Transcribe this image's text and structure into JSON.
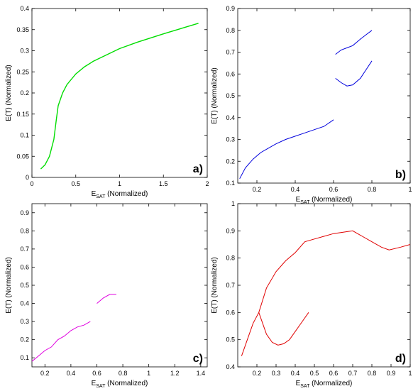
{
  "chart_data": [
    {
      "type": "line",
      "panel_label": "a)",
      "xlabel": {
        "main": "E",
        "sub": "SAT",
        "suffix": " (Normalized)"
      },
      "ylabel": "E(T) (Normalized)",
      "xlim": [
        0,
        2
      ],
      "ylim": [
        0,
        0.4
      ],
      "xticks": [
        0,
        0.5,
        1,
        1.5,
        2
      ],
      "xtick_labels": [
        "0",
        "0.5",
        "1",
        "1.5",
        "2"
      ],
      "yticks": [
        0,
        0.05,
        0.1,
        0.15,
        0.2,
        0.25,
        0.3,
        0.35,
        0.4
      ],
      "ytick_labels": [
        "0",
        "0.05",
        "0.1",
        "0.15",
        "0.2",
        "0.25",
        "0.3",
        "0.35",
        "0.4"
      ],
      "grid": false,
      "color": "#00dd00",
      "series": [
        {
          "x": [
            0.1,
            0.15,
            0.2,
            0.25,
            0.28,
            0.3,
            0.35,
            0.4,
            0.5,
            0.6,
            0.7,
            0.8,
            1.0,
            1.2,
            1.5,
            1.9
          ],
          "y": [
            0.02,
            0.03,
            0.05,
            0.09,
            0.14,
            0.17,
            0.2,
            0.22,
            0.245,
            0.262,
            0.275,
            0.285,
            0.305,
            0.32,
            0.34,
            0.365
          ]
        }
      ]
    },
    {
      "type": "scatter",
      "panel_label": "b)",
      "xlabel": {
        "main": "E",
        "sub": "SAT",
        "suffix": " (Normalized)"
      },
      "ylabel": "E(T) (Normalized)",
      "xlim": [
        0.1,
        1
      ],
      "ylim": [
        0.1,
        0.9
      ],
      "xticks": [
        0.2,
        0.4,
        0.6,
        0.8,
        1
      ],
      "xtick_labels": [
        "0.2",
        "0.4",
        "0.6",
        "0.8",
        "1"
      ],
      "yticks": [
        0.1,
        0.2,
        0.3,
        0.4,
        0.5,
        0.6,
        0.7,
        0.8,
        0.9
      ],
      "ytick_labels": [
        "0.1",
        "0.2",
        "0.3",
        "0.4",
        "0.5",
        "0.6",
        "0.7",
        "0.8",
        "0.9"
      ],
      "grid": false,
      "color": "#0000dd",
      "series": [
        {
          "x": [
            0.11,
            0.14,
            0.18,
            0.22,
            0.26,
            0.3,
            0.35,
            0.4,
            0.45,
            0.5,
            0.55,
            0.6
          ],
          "y": [
            0.12,
            0.17,
            0.21,
            0.24,
            0.26,
            0.28,
            0.3,
            0.315,
            0.33,
            0.345,
            0.36,
            0.39
          ]
        },
        {
          "x": [
            0.61,
            0.64,
            0.67,
            0.7,
            0.74,
            0.77,
            0.8
          ],
          "y": [
            0.69,
            0.71,
            0.72,
            0.73,
            0.76,
            0.78,
            0.8
          ]
        },
        {
          "x": [
            0.61,
            0.64,
            0.67,
            0.7,
            0.74,
            0.77,
            0.8
          ],
          "y": [
            0.58,
            0.56,
            0.545,
            0.55,
            0.58,
            0.62,
            0.66
          ]
        }
      ]
    },
    {
      "type": "scatter",
      "panel_label": "c)",
      "xlabel": {
        "main": "E",
        "sub": "SAT",
        "suffix": " (Normalized)"
      },
      "ylabel": "E(T) (Normalized)",
      "xlim": [
        0.1,
        1.45
      ],
      "ylim": [
        0.05,
        0.95
      ],
      "xticks": [
        0.2,
        0.4,
        0.6,
        0.8,
        1,
        1.2,
        1.4
      ],
      "xtick_labels": [
        "0.2",
        "0.4",
        "0.6",
        "0.8",
        "1",
        "1.2",
        "1.4"
      ],
      "yticks": [
        0.1,
        0.2,
        0.3,
        0.4,
        0.5,
        0.6,
        0.7,
        0.8,
        0.9
      ],
      "ytick_labels": [
        "0.1",
        "0.2",
        "0.3",
        "0.4",
        "0.5",
        "0.6",
        "0.7",
        "0.8",
        "0.9"
      ],
      "grid": false,
      "color": "#e000e0",
      "series": [
        {
          "x": [
            0.1,
            0.15,
            0.2,
            0.25,
            0.3,
            0.35,
            0.4,
            0.45,
            0.5,
            0.55
          ],
          "y": [
            0.08,
            0.11,
            0.14,
            0.16,
            0.2,
            0.22,
            0.25,
            0.27,
            0.28,
            0.3
          ]
        },
        {
          "x": [
            0.6,
            0.65,
            0.7,
            0.75
          ],
          "y": [
            0.4,
            0.43,
            0.45,
            0.45
          ]
        }
      ]
    },
    {
      "type": "scatter",
      "panel_label": "d)",
      "xlabel": {
        "main": "E",
        "sub": "SAT",
        "suffix": " (Normalized)"
      },
      "ylabel": "E(T) (Normalized)",
      "xlim": [
        0.1,
        1
      ],
      "ylim": [
        0.4,
        1
      ],
      "xticks": [
        0.2,
        0.3,
        0.4,
        0.5,
        0.6,
        0.7,
        0.8,
        0.9,
        1
      ],
      "xtick_labels": [
        "0.2",
        "0.3",
        "0.4",
        "0.5",
        "0.6",
        "0.7",
        "0.8",
        "0.9",
        "1"
      ],
      "yticks": [
        0.4,
        0.5,
        0.6,
        0.7,
        0.8,
        0.9,
        1
      ],
      "ytick_labels": [
        "0.4",
        "0.5",
        "0.6",
        "0.7",
        "0.8",
        "0.9",
        "1"
      ],
      "grid": false,
      "color": "#e00000",
      "series": [
        {
          "x": [
            0.12,
            0.15,
            0.18,
            0.21,
            0.25,
            0.3,
            0.35,
            0.4,
            0.45,
            0.5,
            0.55,
            0.6,
            0.65,
            0.7,
            0.75,
            0.8,
            0.85,
            0.89,
            0.95,
            1.0
          ],
          "y": [
            0.44,
            0.5,
            0.56,
            0.6,
            0.69,
            0.75,
            0.79,
            0.82,
            0.86,
            0.87,
            0.88,
            0.89,
            0.895,
            0.9,
            0.88,
            0.86,
            0.84,
            0.83,
            0.84,
            0.85
          ]
        },
        {
          "x": [
            0.21,
            0.23,
            0.25,
            0.28,
            0.31,
            0.34,
            0.37,
            0.4,
            0.42,
            0.45,
            0.47
          ],
          "y": [
            0.6,
            0.56,
            0.52,
            0.49,
            0.48,
            0.485,
            0.5,
            0.53,
            0.55,
            0.58,
            0.6
          ]
        }
      ]
    }
  ]
}
